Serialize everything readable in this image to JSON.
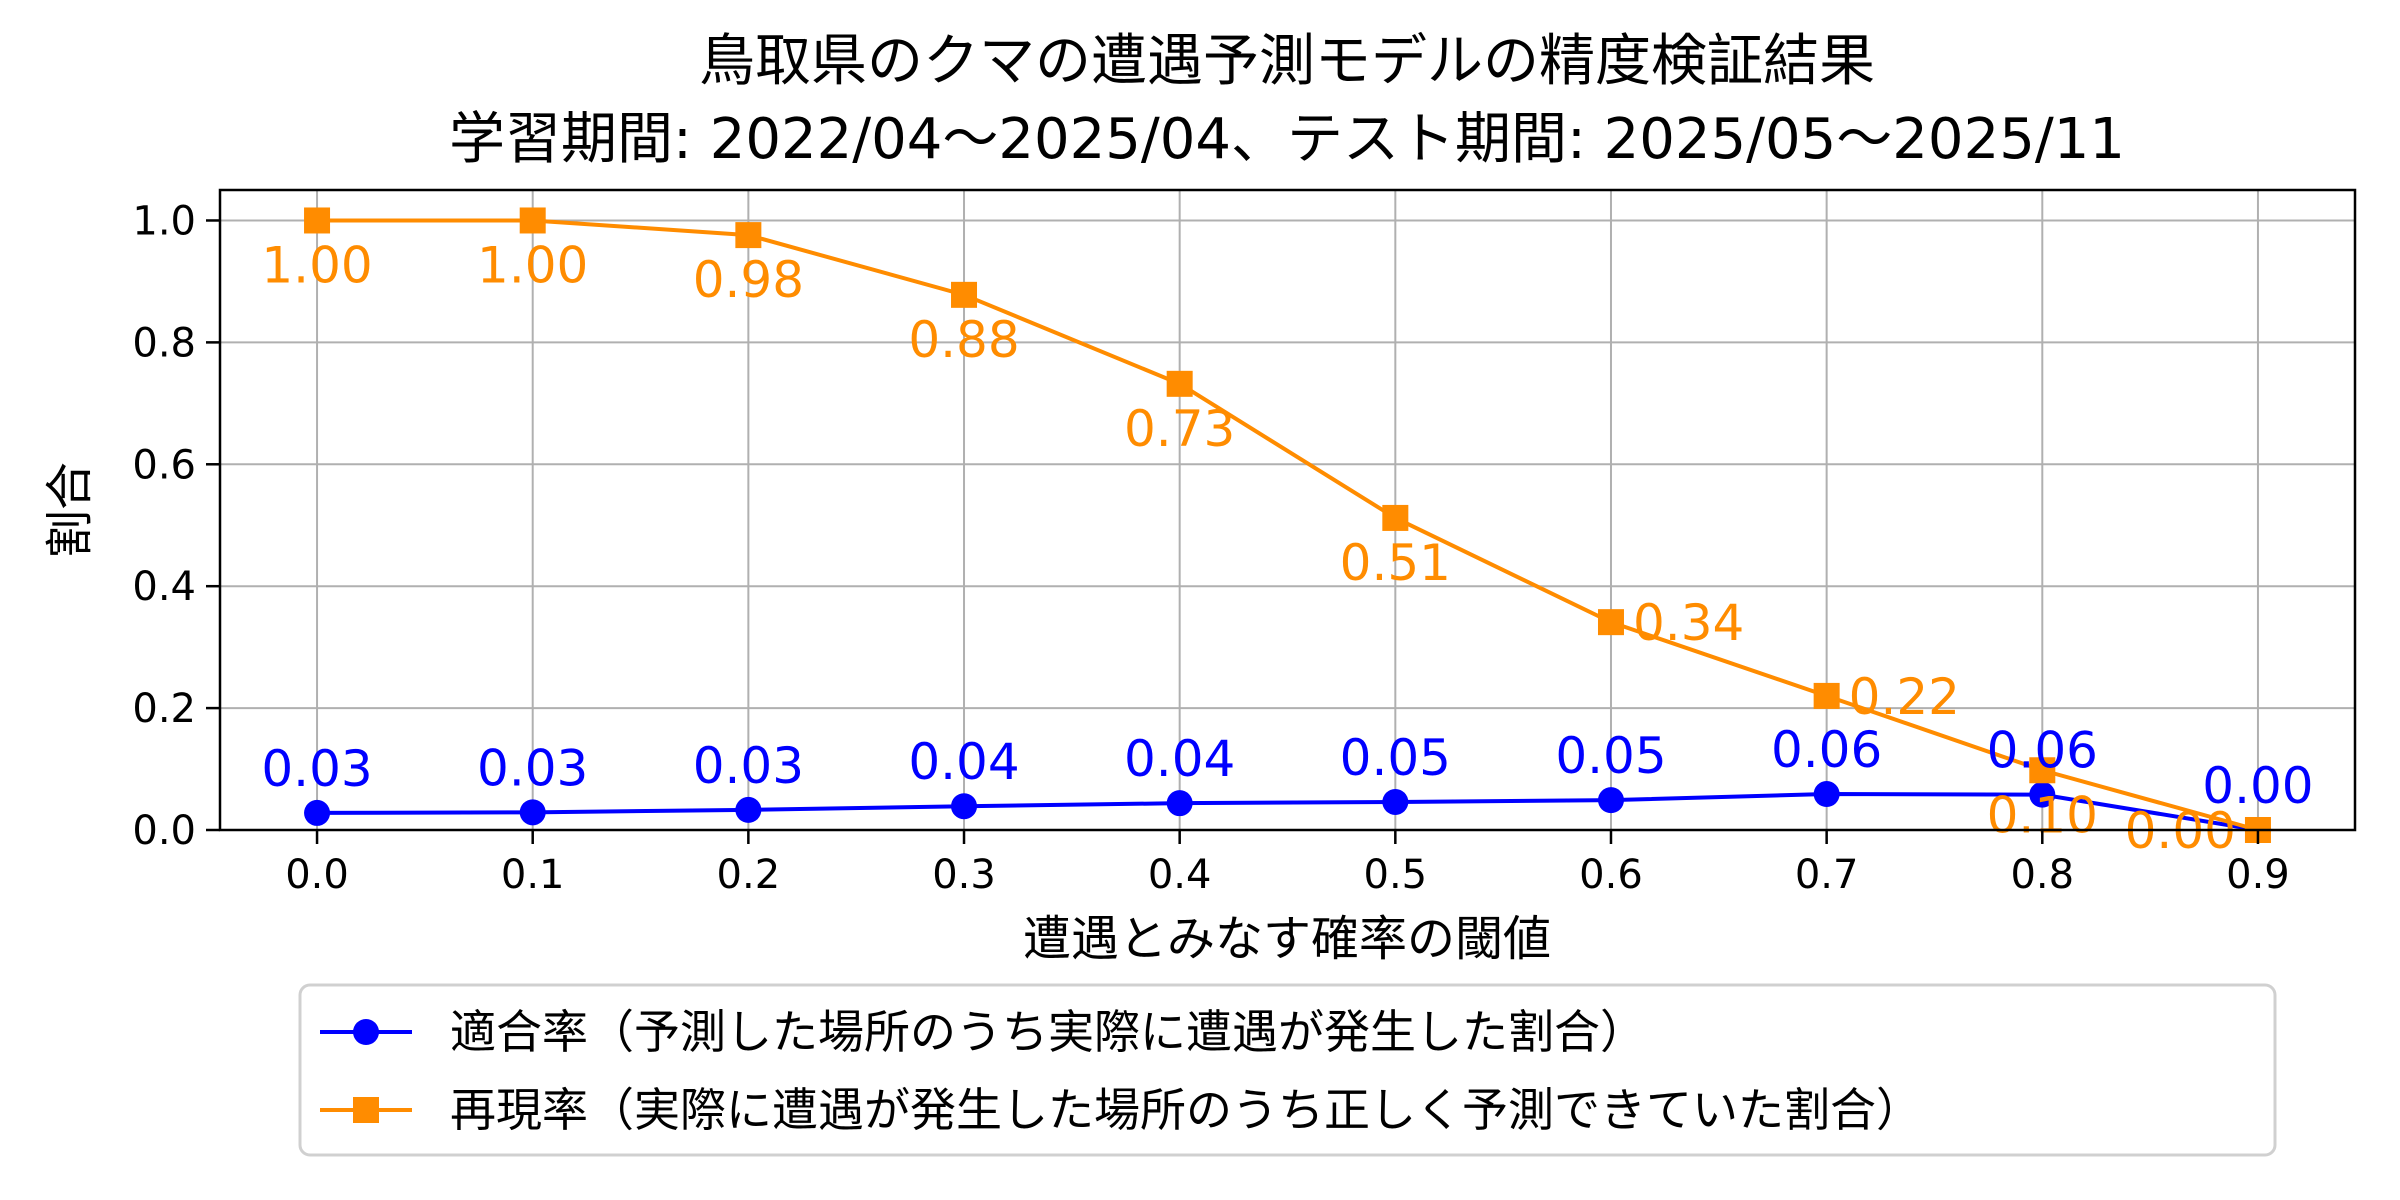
{
  "chart_data": {
    "type": "line",
    "title": "鳥取県のクマの遭遇予測モデルの精度検証結果",
    "subtitle": "学習期間: 2022/04〜2025/04、テスト期間: 2025/05〜2025/11",
    "xlabel": "遭遇とみなす確率の閾値",
    "ylabel": "割合",
    "xlim": [
      -0.045,
      0.945
    ],
    "ylim": [
      0,
      1.05
    ],
    "xticks": [
      "0.0",
      "0.1",
      "0.2",
      "0.3",
      "0.4",
      "0.5",
      "0.6",
      "0.7",
      "0.8",
      "0.9"
    ],
    "yticks": [
      "0.0",
      "0.2",
      "0.4",
      "0.6",
      "0.8",
      "1.0"
    ],
    "grid": true,
    "legend_position": "center-right",
    "x": [
      0.0,
      0.1,
      0.2,
      0.3,
      0.4,
      0.5,
      0.6,
      0.7,
      0.8,
      0.9
    ],
    "series": [
      {
        "name": "適合率（予測した場所のうち実際に遭遇が発生した割合）",
        "color": "#0000ff",
        "marker": "circle",
        "label_position": "above",
        "values": [
          0.028,
          0.029,
          0.033,
          0.039,
          0.044,
          0.046,
          0.049,
          0.059,
          0.058,
          0.0
        ],
        "labels": [
          "0.03",
          "0.03",
          "0.03",
          "0.04",
          "0.04",
          "0.05",
          "0.05",
          "0.06",
          "0.06",
          "0.00"
        ]
      },
      {
        "name": "再現率（実際に遭遇が発生した場所のうち正しく予測できていた割合）",
        "color": "#ff8c00",
        "marker": "square",
        "label_position": "below",
        "values": [
          1.0,
          1.0,
          0.976,
          0.878,
          0.732,
          0.512,
          0.341,
          0.22,
          0.098,
          0.0
        ],
        "labels": [
          "1.00",
          "1.00",
          "0.98",
          "0.88",
          "0.73",
          "0.51",
          "0.34",
          "0.22",
          "0.10",
          "0.00"
        ]
      }
    ]
  }
}
